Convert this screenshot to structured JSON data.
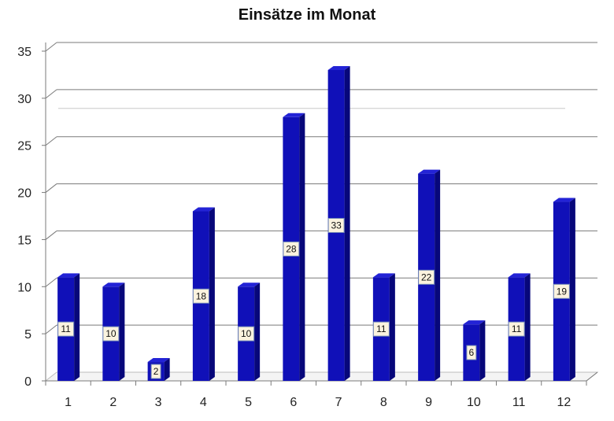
{
  "chart_data": {
    "type": "bar",
    "title": "Einsätze im Monat",
    "xlabel": "",
    "ylabel": "",
    "categories": [
      "1",
      "2",
      "3",
      "4",
      "5",
      "6",
      "7",
      "8",
      "9",
      "10",
      "11",
      "12"
    ],
    "values": [
      11,
      10,
      2,
      18,
      10,
      28,
      33,
      11,
      22,
      6,
      11,
      19
    ],
    "ylim": [
      0,
      35
    ],
    "yticks": [
      0,
      5,
      10,
      15,
      20,
      25,
      30,
      35
    ],
    "grid": true,
    "legend": "none",
    "data_labels": true,
    "bar_color": "#1010b8",
    "reference_line": 28
  }
}
